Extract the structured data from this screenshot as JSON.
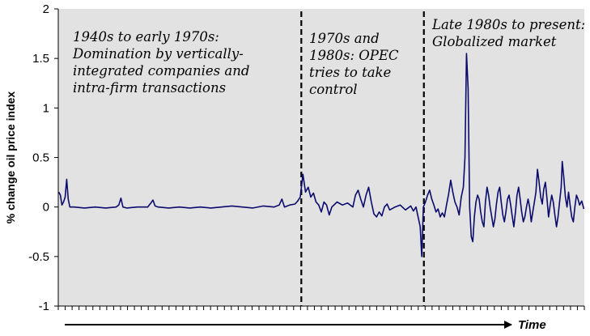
{
  "chart_data": {
    "type": "line",
    "title": "",
    "xlabel": "Time",
    "ylabel": "% change oil price index",
    "ylim": [
      -1,
      2
    ],
    "yticks": [
      "-1",
      "-0.5",
      "0",
      "0.5",
      "1",
      "1.5",
      "2"
    ],
    "grid": false,
    "background_color": "#e2e2e2",
    "line_color": "#0b0b6e",
    "x_range": [
      0,
      100
    ],
    "period_dividers_x": [
      46.2,
      69.5
    ],
    "annotations": [
      {
        "name": "period-1",
        "lines": [
          "1940s to early 1970s:",
          "Domination by vertically-",
          "integrated companies and",
          "intra-firm transactions"
        ]
      },
      {
        "name": "period-2",
        "lines": [
          "1970s and",
          "1980s: OPEC",
          "tries to take",
          "control"
        ]
      },
      {
        "name": "period-3",
        "lines": [
          "Late 1980s to present:",
          "Globalized market"
        ]
      }
    ],
    "series": [
      {
        "name": "",
        "points": [
          [
            0.1,
            0.15
          ],
          [
            0.4,
            0.12
          ],
          [
            0.7,
            0.02
          ],
          [
            1.0,
            0.05
          ],
          [
            1.3,
            0.1
          ],
          [
            1.6,
            0.28
          ],
          [
            1.9,
            0.08
          ],
          [
            2.2,
            0.0
          ],
          [
            3,
            0.0
          ],
          [
            5,
            -0.01
          ],
          [
            7,
            0.0
          ],
          [
            9,
            -0.01
          ],
          [
            11,
            0.0
          ],
          [
            11.5,
            0.02
          ],
          [
            11.9,
            0.09
          ],
          [
            12.3,
            0.0
          ],
          [
            13,
            -0.01
          ],
          [
            15,
            0.0
          ],
          [
            17,
            0.0
          ],
          [
            17.6,
            0.04
          ],
          [
            18.0,
            0.07
          ],
          [
            18.4,
            0.01
          ],
          [
            19,
            0.0
          ],
          [
            21,
            -0.01
          ],
          [
            23,
            0.0
          ],
          [
            25,
            -0.01
          ],
          [
            27,
            0.0
          ],
          [
            29,
            -0.01
          ],
          [
            31,
            0.0
          ],
          [
            33,
            0.01
          ],
          [
            35,
            0.0
          ],
          [
            37,
            -0.01
          ],
          [
            39,
            0.01
          ],
          [
            41,
            0.0
          ],
          [
            42,
            0.02
          ],
          [
            42.5,
            0.08
          ],
          [
            43,
            0.0
          ],
          [
            44,
            0.02
          ],
          [
            45,
            0.03
          ],
          [
            45.5,
            0.06
          ],
          [
            46,
            0.1
          ],
          [
            46.5,
            0.33
          ],
          [
            47,
            0.15
          ],
          [
            47.5,
            0.2
          ],
          [
            48,
            0.1
          ],
          [
            48.5,
            0.14
          ],
          [
            49,
            0.05
          ],
          [
            49.5,
            0.02
          ],
          [
            50,
            -0.05
          ],
          [
            50.5,
            0.05
          ],
          [
            51,
            0.02
          ],
          [
            51.5,
            -0.08
          ],
          [
            52,
            0.0
          ],
          [
            53,
            0.05
          ],
          [
            54,
            0.02
          ],
          [
            55,
            0.04
          ],
          [
            56,
            0.0
          ],
          [
            56.5,
            0.12
          ],
          [
            57,
            0.17
          ],
          [
            57.5,
            0.08
          ],
          [
            58,
            0.0
          ],
          [
            58.5,
            0.12
          ],
          [
            59,
            0.2
          ],
          [
            59.5,
            0.05
          ],
          [
            60,
            -0.07
          ],
          [
            60.5,
            -0.1
          ],
          [
            61,
            -0.05
          ],
          [
            61.5,
            -0.09
          ],
          [
            62,
            0.0
          ],
          [
            62.5,
            0.03
          ],
          [
            63,
            -0.03
          ],
          [
            64,
            0.0
          ],
          [
            65,
            0.02
          ],
          [
            66,
            -0.03
          ],
          [
            67,
            0.01
          ],
          [
            67.5,
            -0.04
          ],
          [
            68,
            0.0
          ],
          [
            68.4,
            -0.1
          ],
          [
            68.8,
            -0.2
          ],
          [
            69.1,
            -0.5
          ],
          [
            69.4,
            0.0
          ],
          [
            69.8,
            0.05
          ],
          [
            70.2,
            0.12
          ],
          [
            70.6,
            0.17
          ],
          [
            71,
            0.08
          ],
          [
            71.4,
            0.02
          ],
          [
            71.8,
            -0.05
          ],
          [
            72.2,
            -0.02
          ],
          [
            72.6,
            -0.1
          ],
          [
            73,
            -0.06
          ],
          [
            73.4,
            -0.1
          ],
          [
            73.8,
            0.02
          ],
          [
            74.2,
            0.13
          ],
          [
            74.6,
            0.27
          ],
          [
            75,
            0.15
          ],
          [
            75.4,
            0.05
          ],
          [
            75.8,
            0.0
          ],
          [
            76.2,
            -0.08
          ],
          [
            76.6,
            0.1
          ],
          [
            77,
            0.2
          ],
          [
            77.3,
            0.5
          ],
          [
            77.6,
            1.55
          ],
          [
            77.9,
            1.2
          ],
          [
            78.2,
            0.0
          ],
          [
            78.5,
            -0.3
          ],
          [
            78.8,
            -0.35
          ],
          [
            79.1,
            -0.1
          ],
          [
            79.4,
            0.05
          ],
          [
            79.7,
            0.12
          ],
          [
            80,
            0.08
          ],
          [
            80.3,
            -0.05
          ],
          [
            80.6,
            -0.15
          ],
          [
            80.9,
            -0.2
          ],
          [
            81.2,
            0.05
          ],
          [
            81.5,
            0.2
          ],
          [
            81.8,
            0.12
          ],
          [
            82.1,
            0.0
          ],
          [
            82.4,
            -0.1
          ],
          [
            82.7,
            -0.2
          ],
          [
            83,
            -0.12
          ],
          [
            83.3,
            0.03
          ],
          [
            83.6,
            0.15
          ],
          [
            83.9,
            0.2
          ],
          [
            84.2,
            0.05
          ],
          [
            84.5,
            -0.08
          ],
          [
            84.8,
            -0.15
          ],
          [
            85.1,
            -0.05
          ],
          [
            85.4,
            0.08
          ],
          [
            85.7,
            0.12
          ],
          [
            86,
            0.02
          ],
          [
            86.3,
            -0.1
          ],
          [
            86.6,
            -0.2
          ],
          [
            86.9,
            -0.05
          ],
          [
            87.2,
            0.12
          ],
          [
            87.5,
            0.2
          ],
          [
            87.8,
            0.08
          ],
          [
            88.1,
            -0.05
          ],
          [
            88.4,
            -0.15
          ],
          [
            88.7,
            -0.1
          ],
          [
            89,
            0.0
          ],
          [
            89.3,
            0.08
          ],
          [
            89.6,
            0.0
          ],
          [
            89.9,
            -0.15
          ],
          [
            90.2,
            -0.05
          ],
          [
            90.5,
            0.05
          ],
          [
            90.8,
            0.15
          ],
          [
            91.1,
            0.38
          ],
          [
            91.4,
            0.25
          ],
          [
            91.7,
            0.1
          ],
          [
            92,
            0.03
          ],
          [
            92.3,
            0.18
          ],
          [
            92.6,
            0.25
          ],
          [
            92.9,
            0.08
          ],
          [
            93.2,
            -0.1
          ],
          [
            93.5,
            0.02
          ],
          [
            93.8,
            0.12
          ],
          [
            94.1,
            0.05
          ],
          [
            94.4,
            -0.08
          ],
          [
            94.7,
            -0.2
          ],
          [
            95,
            -0.1
          ],
          [
            95.3,
            0.05
          ],
          [
            95.6,
            0.2
          ],
          [
            95.8,
            0.46
          ],
          [
            96.1,
            0.3
          ],
          [
            96.4,
            0.1
          ],
          [
            96.7,
            0.0
          ],
          [
            97,
            0.15
          ],
          [
            97.3,
            0.02
          ],
          [
            97.6,
            -0.1
          ],
          [
            97.9,
            -0.15
          ],
          [
            98.2,
            0.0
          ],
          [
            98.5,
            0.12
          ],
          [
            98.8,
            0.08
          ],
          [
            99.1,
            0.02
          ],
          [
            99.5,
            0.06
          ],
          [
            99.9,
            -0.02
          ]
        ]
      }
    ]
  }
}
